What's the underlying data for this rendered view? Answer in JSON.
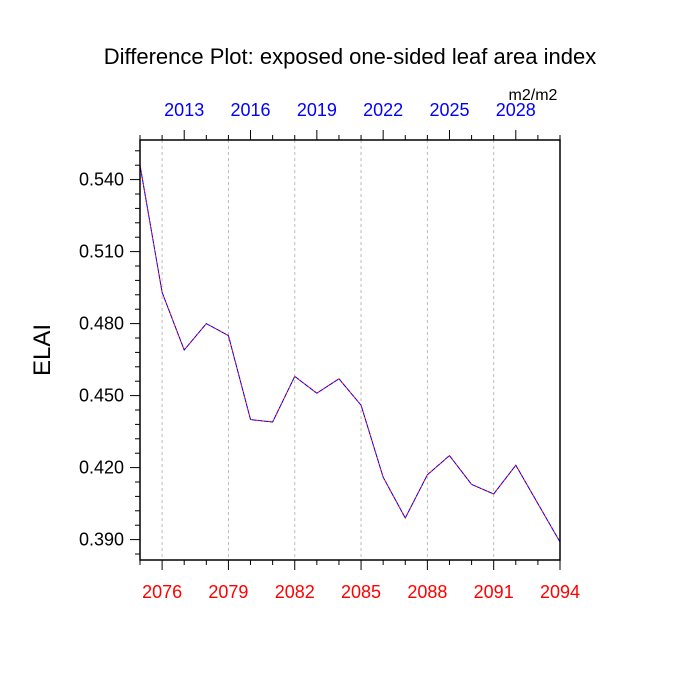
{
  "chart_data": {
    "type": "line",
    "title": "Difference Plot: exposed one-sided leaf area index",
    "ylabel": "ELAI",
    "units_label": "m2/m2",
    "x_bottom": [
      2075,
      2076,
      2077,
      2078,
      2079,
      2080,
      2081,
      2082,
      2083,
      2084,
      2085,
      2086,
      2087,
      2088,
      2089,
      2090,
      2091,
      2092,
      2093,
      2094
    ],
    "x_top": [
      2011,
      2012,
      2013,
      2014,
      2015,
      2016,
      2017,
      2018,
      2019,
      2020,
      2021,
      2022,
      2023,
      2024,
      2025,
      2026,
      2027,
      2028,
      2029,
      2030
    ],
    "bottom_tick_labels": [
      "2076",
      "2079",
      "2082",
      "2085",
      "2088",
      "2091",
      "2094"
    ],
    "top_tick_labels": [
      "2013",
      "2016",
      "2019",
      "2022",
      "2025",
      "2028"
    ],
    "y_tick_labels": [
      "0.540",
      "0.510",
      "0.480",
      "0.450",
      "0.420",
      "0.390"
    ],
    "series": [
      {
        "values": [
          0.546,
          0.493,
          0.469,
          0.48,
          0.475,
          0.44,
          0.439,
          0.458,
          0.451,
          0.457,
          0.446,
          0.416,
          0.399,
          0.417,
          0.425,
          0.413,
          0.409,
          0.421,
          0.405,
          0.389
        ]
      }
    ],
    "ylim": [
      0.3815,
      0.5565
    ],
    "xlim": [
      2075,
      2094
    ],
    "colors": {
      "line_primary": "#ff0000",
      "line_secondary": "#0000ff",
      "bottom_axis_labels": "#ff0000",
      "top_axis_labels": "#0000ff",
      "grid": "#bbbbbb"
    },
    "grid": "vertical dashed at major bottom ticks",
    "line_style": "dashed"
  }
}
